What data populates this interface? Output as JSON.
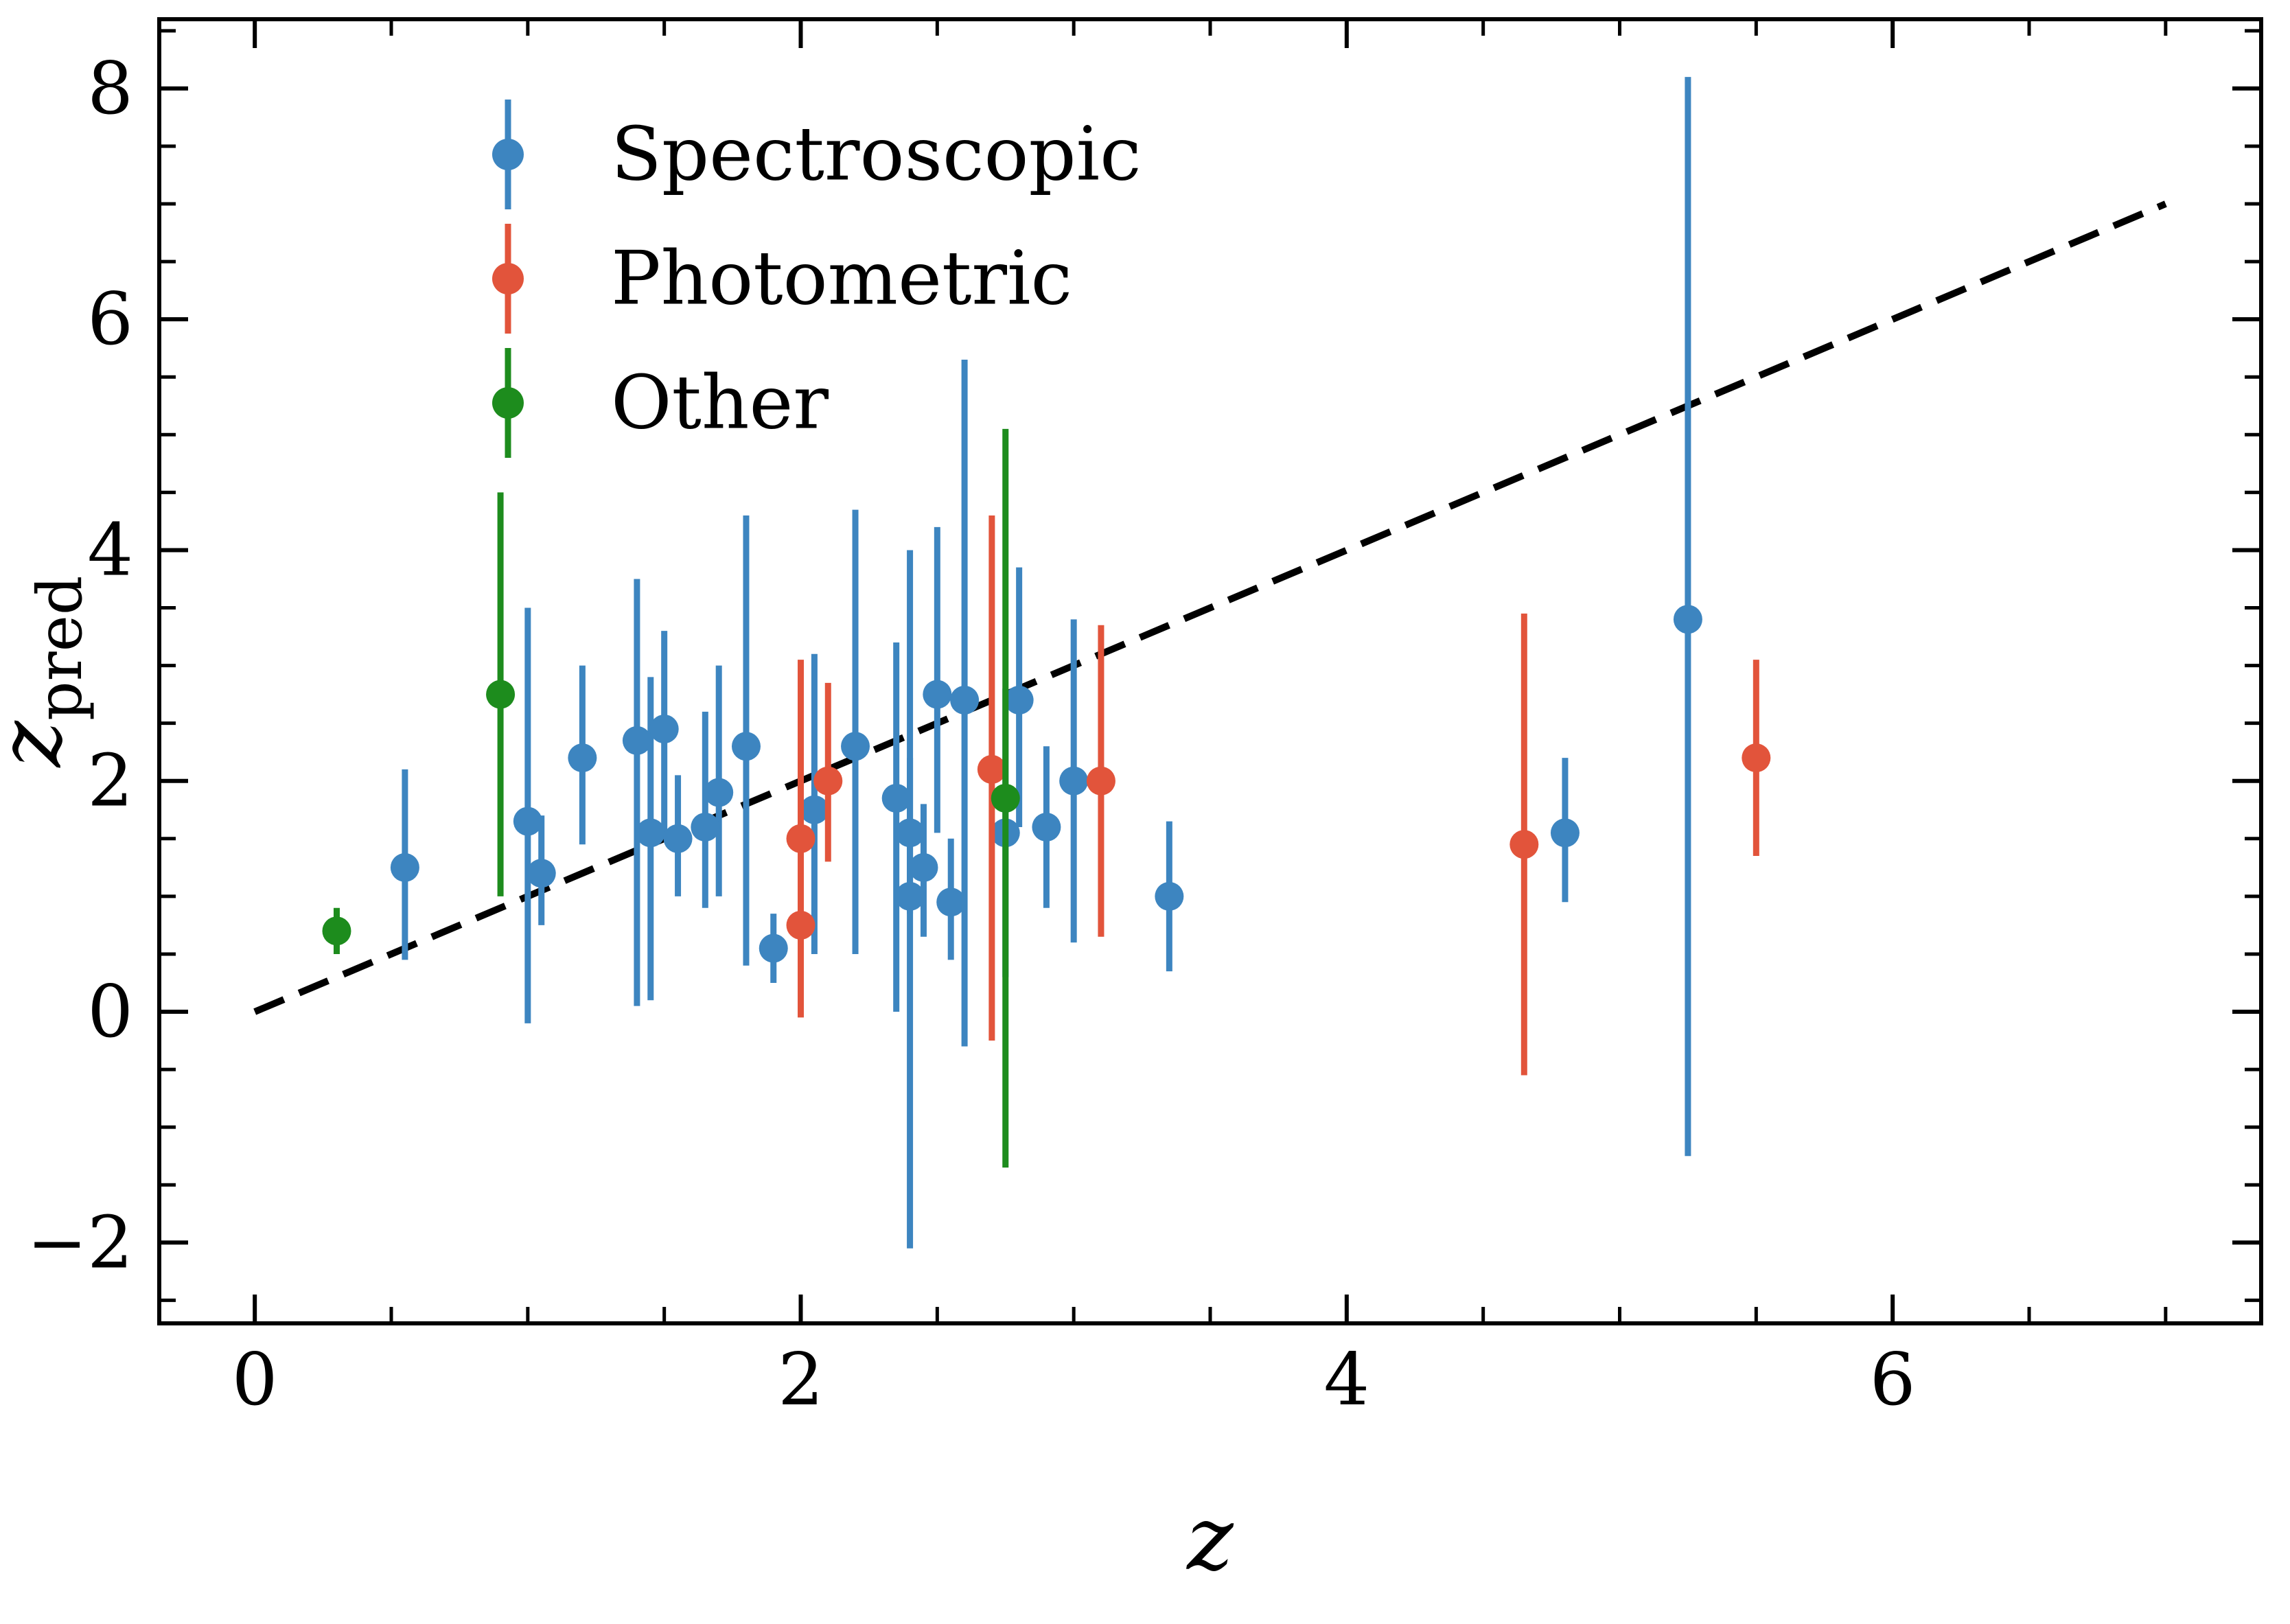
{
  "chart_data": {
    "type": "scatter",
    "title": "",
    "xlabel": "z",
    "ylabel_main": "z",
    "ylabel_sub": "pred",
    "xlim": [
      -0.35,
      7.35
    ],
    "ylim": [
      -2.7,
      8.6
    ],
    "xticks": [
      0,
      2,
      4,
      6
    ],
    "yticks": [
      -2,
      0,
      2,
      4,
      6,
      8
    ],
    "minor_tick_step": 0.5,
    "grid": false,
    "identity_line": {
      "x0": 0,
      "y0": 0,
      "x1": 7,
      "y1": 7,
      "style": "dashed",
      "color": "#000000"
    },
    "legend": {
      "position": "upper-left",
      "items": [
        {
          "label": "Spectroscopic",
          "color": "#3d85c0"
        },
        {
          "label": "Photometric",
          "color": "#e2543b"
        },
        {
          "label": "Other",
          "color": "#1d8c1d"
        }
      ]
    },
    "series": [
      {
        "name": "Spectroscopic",
        "color": "#3d85c0",
        "points_format": [
          "x",
          "y",
          "err_minus",
          "err_plus"
        ],
        "points": [
          [
            0.55,
            1.25,
            0.8,
            0.85
          ],
          [
            1.0,
            1.65,
            1.75,
            1.85
          ],
          [
            1.05,
            1.2,
            0.45,
            0.5
          ],
          [
            1.2,
            2.2,
            0.75,
            0.8
          ],
          [
            1.4,
            2.35,
            2.3,
            1.4
          ],
          [
            1.45,
            1.55,
            1.45,
            1.35
          ],
          [
            1.5,
            2.45,
            0.95,
            0.85
          ],
          [
            1.55,
            1.5,
            0.5,
            0.55
          ],
          [
            1.65,
            1.6,
            0.7,
            1.0
          ],
          [
            1.7,
            1.9,
            0.9,
            1.1
          ],
          [
            1.8,
            2.3,
            1.9,
            2.0
          ],
          [
            1.9,
            0.55,
            0.3,
            0.3
          ],
          [
            2.05,
            1.75,
            1.25,
            1.35
          ],
          [
            2.2,
            2.3,
            1.8,
            2.05
          ],
          [
            2.35,
            1.85,
            1.85,
            1.35
          ],
          [
            2.4,
            1.55,
            0.7,
            0.65
          ],
          [
            2.4,
            1.0,
            3.05,
            3.0
          ],
          [
            2.45,
            1.25,
            0.6,
            0.55
          ],
          [
            2.5,
            2.75,
            1.2,
            1.45
          ],
          [
            2.55,
            0.95,
            0.5,
            0.55
          ],
          [
            2.6,
            2.7,
            3.0,
            2.95
          ],
          [
            2.75,
            1.55,
            1.25,
            1.25
          ],
          [
            2.8,
            2.7,
            1.1,
            1.15
          ],
          [
            2.9,
            1.6,
            0.7,
            0.7
          ],
          [
            3.0,
            2.0,
            1.4,
            1.4
          ],
          [
            3.35,
            1.0,
            0.65,
            0.65
          ],
          [
            4.8,
            1.55,
            0.6,
            0.65
          ],
          [
            5.25,
            3.4,
            4.65,
            4.7
          ]
        ]
      },
      {
        "name": "Photometric",
        "color": "#e2543b",
        "points_format": [
          "x",
          "y",
          "err_minus",
          "err_plus"
        ],
        "points": [
          [
            2.0,
            1.5,
            1.55,
            1.55
          ],
          [
            2.0,
            0.75,
            0.45,
            0.45
          ],
          [
            2.1,
            2.0,
            0.7,
            0.85
          ],
          [
            2.7,
            2.1,
            2.35,
            2.2
          ],
          [
            3.1,
            2.0,
            1.35,
            1.35
          ],
          [
            4.65,
            1.45,
            2.0,
            2.0
          ],
          [
            5.5,
            2.2,
            0.85,
            0.85
          ]
        ]
      },
      {
        "name": "Other",
        "color": "#1d8c1d",
        "points_format": [
          "x",
          "y",
          "err_minus",
          "err_plus"
        ],
        "points": [
          [
            0.3,
            0.7,
            0.2,
            0.2
          ],
          [
            0.9,
            2.75,
            1.75,
            1.75
          ],
          [
            2.75,
            1.85,
            3.2,
            3.2
          ]
        ]
      }
    ]
  }
}
